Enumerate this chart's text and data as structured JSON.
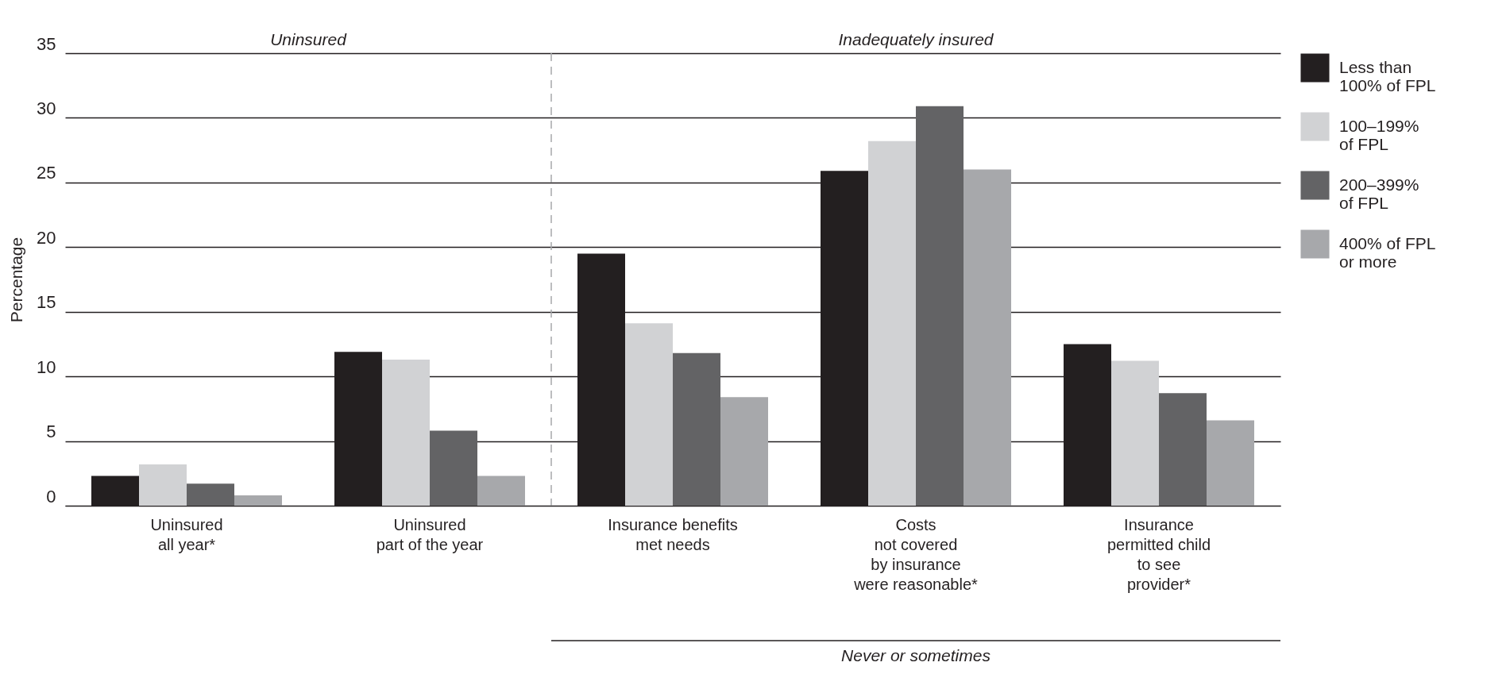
{
  "chart_data": {
    "type": "bar",
    "ylabel": "Percentage",
    "categories": [
      "Uninsured\nall year*",
      "Uninsured\npart of the year",
      "Insurance benefits\nmet needs",
      "Costs\nnot covered\nby insurance\nwere reasonable*",
      "Insurance\npermitted child\nto see\nprovider*"
    ],
    "series": [
      {
        "name": "Less than\n100% of FPL",
        "color": "#231f20",
        "values": [
          2.3,
          11.9,
          19.5,
          25.9,
          12.5
        ]
      },
      {
        "name": "100–199%\nof FPL",
        "color": "#d1d2d4",
        "values": [
          3.2,
          11.3,
          14.1,
          28.2,
          11.2
        ]
      },
      {
        "name": "200–399%\nof FPL",
        "color": "#636365",
        "values": [
          1.7,
          5.8,
          11.8,
          30.9,
          8.7
        ]
      },
      {
        "name": "400% of FPL\nor more",
        "color": "#a7a8ab",
        "values": [
          0.8,
          2.3,
          8.4,
          26.0,
          6.6
        ]
      }
    ],
    "ref_lines": [
      {
        "axis": "x",
        "value": "Insurance benefits\nmet needs",
        "color": "#a7a8ab",
        "line_style": "dashed"
      }
    ],
    "ylim": [
      0,
      35
    ],
    "yticks": [
      0,
      5,
      10,
      15,
      20,
      25,
      30,
      35
    ],
    "grid": "y",
    "legend": "top right",
    "annotations": [
      "Uninsured",
      "Inadequately insured",
      "Never or sometimes"
    ]
  }
}
